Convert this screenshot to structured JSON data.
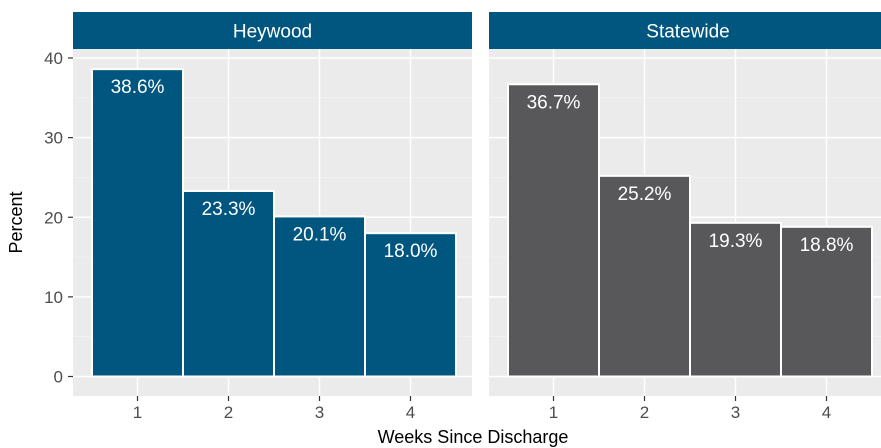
{
  "chart_data": {
    "type": "bar",
    "facets": [
      {
        "name": "Heywood",
        "categories": [
          "1",
          "2",
          "3",
          "4"
        ],
        "values": [
          38.6,
          23.3,
          20.1,
          18.0
        ],
        "labels": [
          "38.6%",
          "23.3%",
          "20.1%",
          "18.0%"
        ],
        "color": "#00567f"
      },
      {
        "name": "Statewide",
        "categories": [
          "1",
          "2",
          "3",
          "4"
        ],
        "values": [
          36.7,
          25.2,
          19.3,
          18.8
        ],
        "labels": [
          "36.7%",
          "25.2%",
          "19.3%",
          "18.8%"
        ],
        "color": "#58585b"
      }
    ],
    "xlabel": "Weeks Since Discharge",
    "ylabel": "Percent",
    "ylim": [
      0,
      40
    ],
    "yticks": [
      0,
      10,
      20,
      30,
      40
    ],
    "grid": true,
    "panel_background": "#ebebeb",
    "strip_color": "#00567f"
  }
}
